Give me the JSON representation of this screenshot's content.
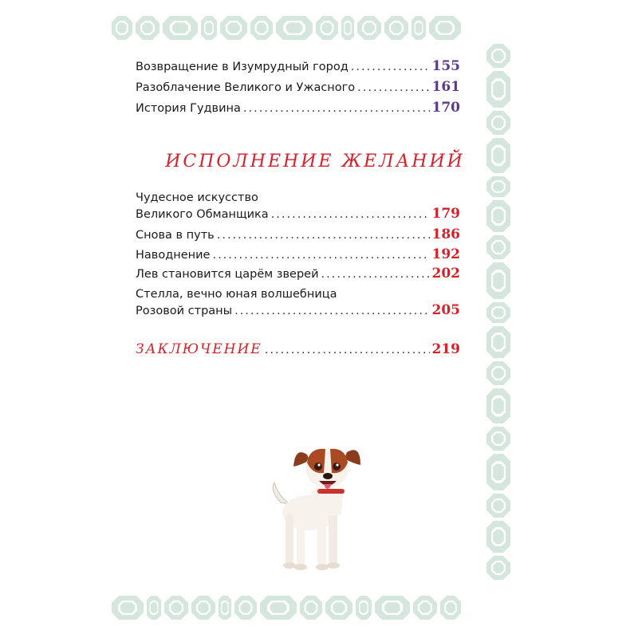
{
  "colors": {
    "border_gem": "#d5e6dd",
    "page_number_purple": "#5b3a8c",
    "accent_red": "#d6202a"
  },
  "entries_top": [
    {
      "title": "Возвращение в Изумрудный город",
      "page": "155"
    },
    {
      "title": "Разоблачение Великого и Ужасного",
      "page": "161"
    },
    {
      "title": "История Гудвина",
      "page": "170"
    }
  ],
  "section": {
    "heading": "Исполнение желаний",
    "entries": [
      {
        "line1": "Чудесное искусство",
        "title": "Великого Обманщика",
        "page": "179"
      },
      {
        "title": "Снова в путь",
        "page": "186"
      },
      {
        "title": "Наводнение",
        "page": "192"
      },
      {
        "title": "Лев становится царём зверей",
        "page": "202"
      },
      {
        "line1": "Стелла, вечно юная волшебница",
        "title": "Розовой страны",
        "page": "205"
      }
    ]
  },
  "conclusion": {
    "title": "Заключение",
    "page": "219"
  },
  "illustration": {
    "icon": "dog-illustration"
  }
}
